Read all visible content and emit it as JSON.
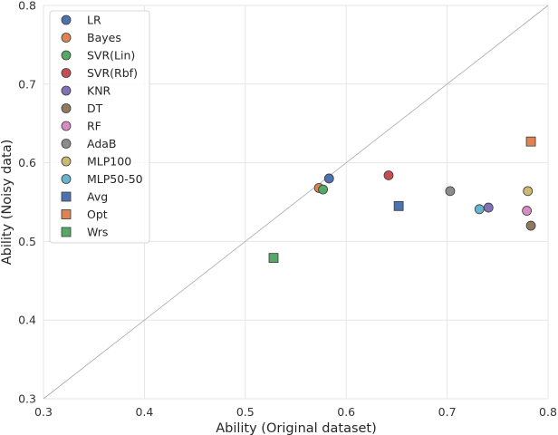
{
  "chart_data": {
    "type": "scatter",
    "title": "",
    "xlabel": "Ability (Original dataset)",
    "ylabel": "Ability (Noisy data)",
    "xlim": [
      0.3,
      0.8
    ],
    "ylim": [
      0.3,
      0.8
    ],
    "xticks": [
      "0.3",
      "0.4",
      "0.5",
      "0.6",
      "0.7",
      "0.8"
    ],
    "yticks": [
      "0.3",
      "0.4",
      "0.5",
      "0.6",
      "0.7",
      "0.8"
    ],
    "grid": true,
    "legend_position": "upper-left",
    "diagonal_reference_line": true,
    "series": [
      {
        "name": "LR",
        "marker": "circle",
        "color": "#4c72b0",
        "x": 0.583,
        "y": 0.58
      },
      {
        "name": "Bayes",
        "marker": "circle",
        "color": "#dd8452",
        "x": 0.573,
        "y": 0.568
      },
      {
        "name": " SVR(Lin)",
        "marker": "circle",
        "color": "#55a868",
        "x": 0.577,
        "y": 0.566
      },
      {
        "name": " SVR(Rbf)",
        "marker": "circle",
        "color": "#c44e52",
        "x": 0.642,
        "y": 0.584
      },
      {
        "name": "KNR",
        "marker": "circle",
        "color": "#8172b3",
        "x": 0.741,
        "y": 0.543
      },
      {
        "name": "DT",
        "marker": "circle",
        "color": "#937860",
        "x": 0.783,
        "y": 0.52
      },
      {
        "name": "RF",
        "marker": "circle",
        "color": "#da8bc3",
        "x": 0.779,
        "y": 0.539
      },
      {
        "name": "AdaB",
        "marker": "circle",
        "color": "#8c8c8c",
        "x": 0.703,
        "y": 0.564
      },
      {
        "name": "MLP100",
        "marker": "circle",
        "color": "#ccb974",
        "x": 0.78,
        "y": 0.564
      },
      {
        "name": "MLP50-50",
        "marker": "circle",
        "color": "#64b5cd",
        "x": 0.732,
        "y": 0.541
      },
      {
        "name": "Avg",
        "marker": "square",
        "color": "#4c72b0",
        "x": 0.652,
        "y": 0.545
      },
      {
        "name": "Opt",
        "marker": "square",
        "color": "#dd8452",
        "x": 0.783,
        "y": 0.627
      },
      {
        "name": "Wrs",
        "marker": "square",
        "color": "#55a868",
        "x": 0.528,
        "y": 0.479
      }
    ]
  }
}
